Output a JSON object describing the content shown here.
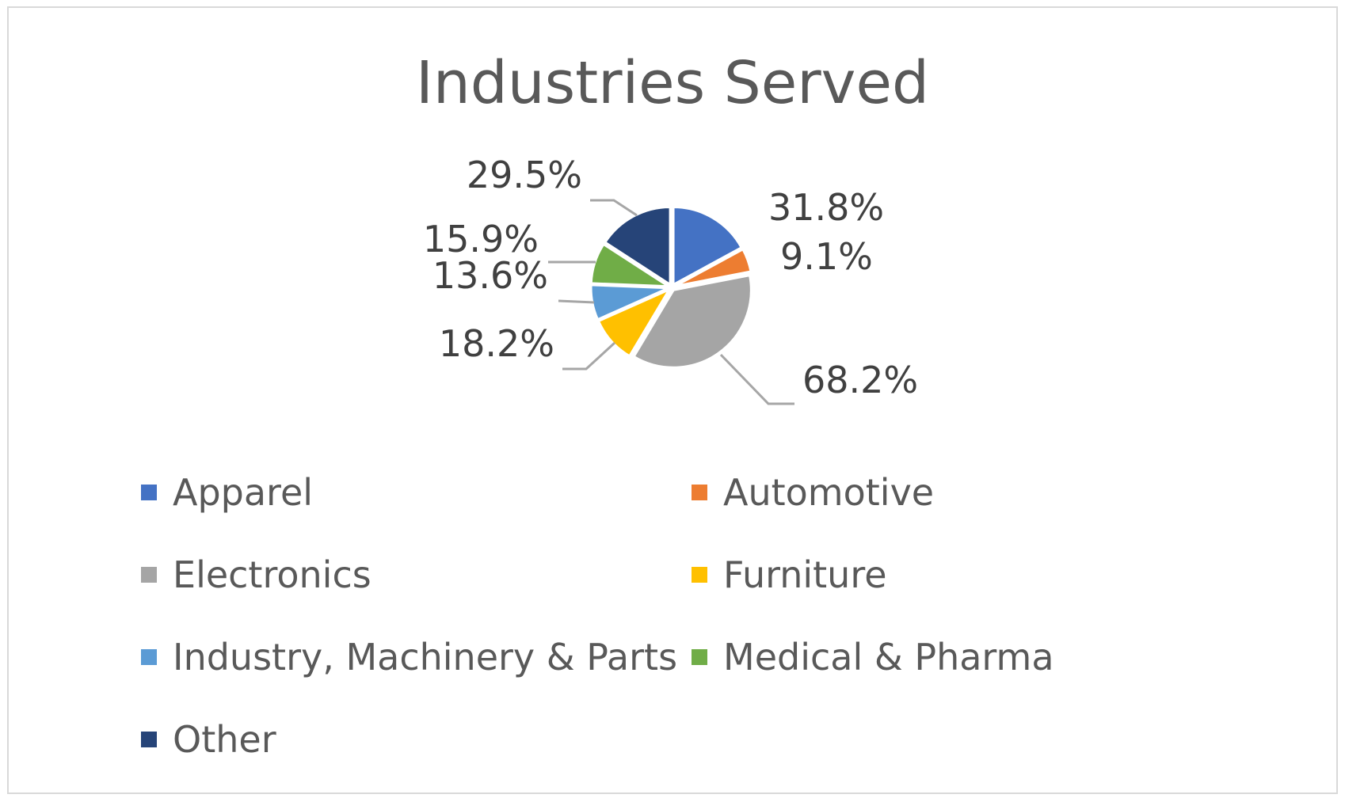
{
  "chart_data": {
    "type": "pie",
    "title": "Industries Served",
    "legend_position": "bottom",
    "slices": [
      {
        "name": "Apparel",
        "value": 31.8,
        "label": "31.8%",
        "color": "#4472C4"
      },
      {
        "name": "Automotive",
        "value": 9.1,
        "label": "9.1%",
        "color": "#ED7D31"
      },
      {
        "name": "Electronics",
        "value": 68.2,
        "label": "68.2%",
        "color": "#A5A5A5"
      },
      {
        "name": "Furniture",
        "value": 18.2,
        "label": "18.2%",
        "color": "#FFC000"
      },
      {
        "name": "Industry, Machinery & Parts",
        "value": 13.6,
        "label": "13.6%",
        "color": "#5B9BD5"
      },
      {
        "name": "Medical & Pharma",
        "value": 15.9,
        "label": "15.9%",
        "color": "#70AD47"
      },
      {
        "name": "Other",
        "value": 29.5,
        "label": "29.5%",
        "color": "#264478"
      }
    ]
  }
}
